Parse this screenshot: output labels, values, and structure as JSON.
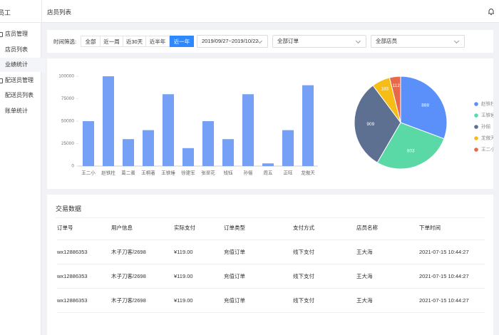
{
  "header": {
    "app": "员工",
    "title": "店员列表"
  },
  "sidebar": [
    {
      "title": "店员管理",
      "items": [
        "店员列表",
        "业绩统计"
      ]
    },
    {
      "title": "配送员管理",
      "items": [
        "配送员列表",
        "账单统计"
      ]
    }
  ],
  "filters": {
    "label": "时间筛选:",
    "ranges": [
      "全部",
      "近一周",
      "近30天",
      "近半年",
      "近一年"
    ],
    "date_range": "2019/09/27~2019/10/22",
    "order_type": "全部订单",
    "staff": "全部店员"
  },
  "chart_data": [
    {
      "type": "bar",
      "categories": [
        "王二小",
        "赵铁柱",
        "葛二蛋",
        "王桐著",
        "王铁锤",
        "徐建军",
        "张翠花",
        "钱钰",
        "孙俪",
        "周五",
        "正旺",
        "龙傲天"
      ],
      "values": [
        50000,
        100000,
        30000,
        40000,
        80000,
        20000,
        50000,
        30000,
        80000,
        3000,
        40000,
        90000
      ],
      "color": "#75a0f5",
      "ylim": [
        0,
        100000
      ],
      "yticks": [
        0,
        25000,
        50000,
        75000,
        100000
      ],
      "grid": false
    },
    {
      "type": "pie",
      "categories": [
        "赵铁柱",
        "王铁锤",
        "孙俪",
        "龙傲天",
        "王二小"
      ],
      "values": [
        888,
        803,
        909,
        183,
        112
      ],
      "colors": [
        "#5b8ff9",
        "#5ad8a6",
        "#5d7092",
        "#f6bd16",
        "#e8684a"
      ]
    }
  ],
  "table": {
    "title": "交易数据",
    "columns": [
      "订单号",
      "用户信息",
      "实际支付",
      "订单类型",
      "支付方式",
      "店员名称",
      "下单时间"
    ],
    "rows": [
      [
        "wx12886353",
        "木子刀客/2698",
        "¥119.00",
        "充值订单",
        "线下支付",
        "王大海",
        "2021-07-15 10:44:27"
      ],
      [
        "wx12886353",
        "木子刀客/2698",
        "¥119.00",
        "充值订单",
        "线下支付",
        "王大海",
        "2021-07-15 10:44:27"
      ],
      [
        "wx12886353",
        "木子刀客/2698",
        "¥119.00",
        "充值订单",
        "线下支付",
        "王大海",
        "2021-07-15 10:44:27"
      ]
    ]
  }
}
